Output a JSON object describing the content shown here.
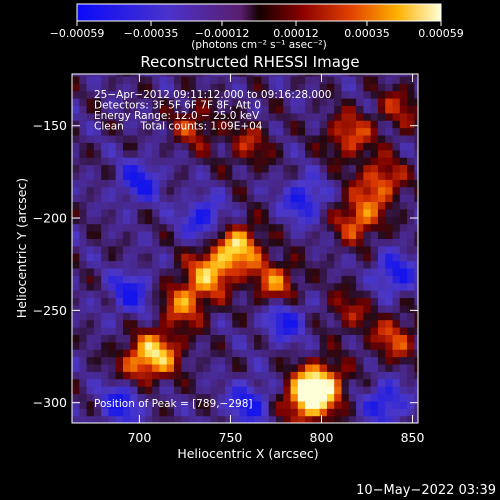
{
  "chart_data": {
    "type": "heatmap",
    "title": "Reconstructed RHESSI Image",
    "xlabel": "Heliocentric X (arcsec)",
    "ylabel": "Heliocentric Y (arcsec)",
    "xlim": [
      663,
      853
    ],
    "ylim": [
      -311,
      -122
    ],
    "x_ticks": [
      700,
      750,
      800,
      850
    ],
    "y_ticks": [
      -300,
      -250,
      -200,
      -150
    ],
    "x_tick_labels": [
      "700",
      "750",
      "800",
      "850"
    ],
    "y_tick_labels": [
      "−300",
      "−250",
      "−200",
      "−150"
    ],
    "colorbar": {
      "range": [
        -0.00059,
        0.00059
      ],
      "ticks": [
        -0.00059,
        -0.00035,
        -0.00012,
        0.00012,
        0.00035,
        0.00059
      ],
      "tick_labels": [
        "−0.00059",
        "−0.00035",
        "−0.00012",
        "0.00012",
        "0.00035",
        "0.00059"
      ],
      "unit_label": "(photons cm⁻² s⁻¹ asec⁻²)"
    },
    "annotations": {
      "time_range": "25−Apr−2012 09:11:12.000 to 09:16:28.000",
      "detectors": "Detectors: 3F 5F 6F 7F 8F, Att 0",
      "energy_range": "Energy Range: 12.0 − 25.0 keV",
      "clean_counts": "Clean     Total counts: 1.09E+04",
      "peak_position": "Position of Peak = [789,−298]"
    },
    "peak": [
      789,
      -298
    ],
    "bright_features": [
      {
        "x": 755,
        "y": -215,
        "level": 0.9
      },
      {
        "x": 740,
        "y": -228,
        "level": 0.85
      },
      {
        "x": 725,
        "y": -245,
        "level": 0.75
      },
      {
        "x": 775,
        "y": -235,
        "level": 0.7
      },
      {
        "x": 820,
        "y": -200,
        "level": 0.75
      },
      {
        "x": 833,
        "y": -180,
        "level": 0.7
      },
      {
        "x": 815,
        "y": -155,
        "level": 0.65
      },
      {
        "x": 800,
        "y": -290,
        "level": 0.95
      },
      {
        "x": 792,
        "y": -298,
        "level": 1.0
      },
      {
        "x": 712,
        "y": -272,
        "level": 0.7
      },
      {
        "x": 700,
        "y": -278,
        "level": 0.65
      },
      {
        "x": 840,
        "y": -265,
        "level": 0.6
      },
      {
        "x": 730,
        "y": -150,
        "level": 0.5
      },
      {
        "x": 760,
        "y": -160,
        "level": 0.45
      },
      {
        "x": 843,
        "y": -140,
        "level": 0.45
      },
      {
        "x": 815,
        "y": -250,
        "level": 0.4
      }
    ],
    "dark_features": [
      {
        "x": 700,
        "y": -180
      },
      {
        "x": 695,
        "y": -240
      },
      {
        "x": 735,
        "y": -200
      },
      {
        "x": 790,
        "y": -190
      },
      {
        "x": 780,
        "y": -255
      },
      {
        "x": 690,
        "y": -300
      },
      {
        "x": 840,
        "y": -230
      },
      {
        "x": 760,
        "y": -300
      },
      {
        "x": 835,
        "y": -300
      }
    ]
  },
  "footer": {
    "timestamp": "10−May−2022 03:39"
  }
}
